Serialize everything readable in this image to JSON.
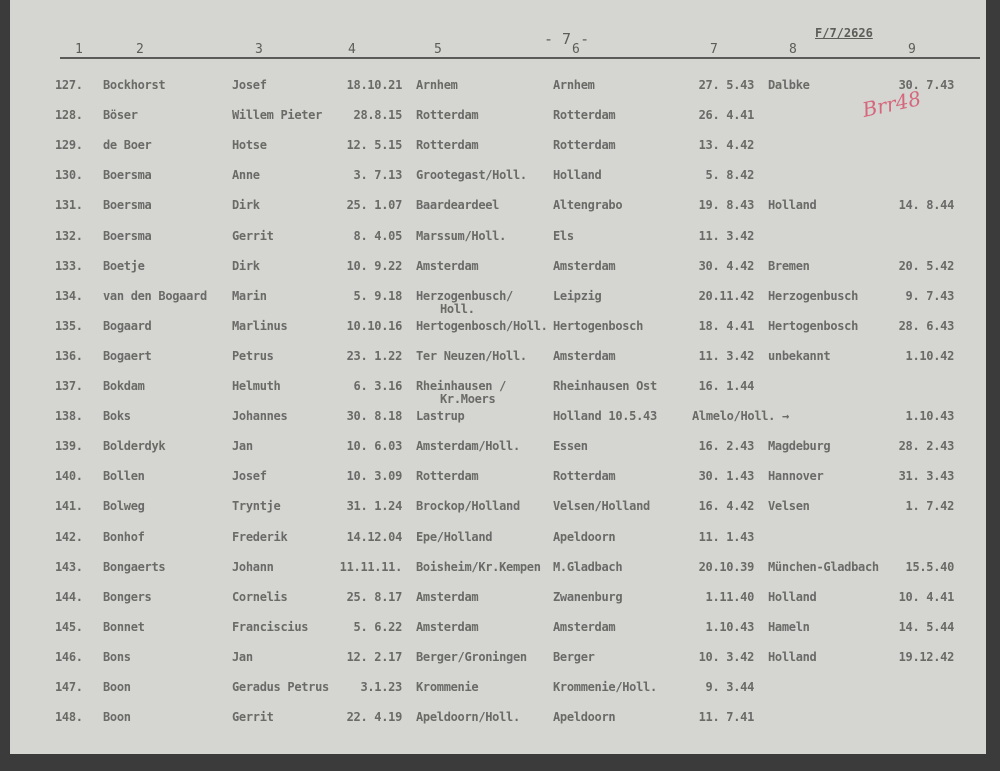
{
  "page_number": "- 7 -",
  "reference": "F/7/2626",
  "annotation": "Brr48",
  "column_headers": [
    "1",
    "2",
    "3",
    "4",
    "5",
    "6",
    "7",
    "8",
    "9"
  ],
  "rows": [
    {
      "no": "127.",
      "surname": "Bockhorst",
      "first": "Josef",
      "born": "18.10.21",
      "birthplace": "Arnhem",
      "from": "Arnhem",
      "date_in": "27. 5.43",
      "to": "Dalbke",
      "date_out": "30. 7.43"
    },
    {
      "no": "128.",
      "surname": "Böser",
      "first": "Willem Pieter",
      "born": "28.8.15",
      "birthplace": "Rotterdam",
      "from": "Rotterdam",
      "date_in": "26. 4.41",
      "to": "",
      "date_out": ""
    },
    {
      "no": "129.",
      "surname": "de Boer",
      "first": "Hotse",
      "born": "12. 5.15",
      "birthplace": "Rotterdam",
      "from": "Rotterdam",
      "date_in": "13. 4.42",
      "to": "",
      "date_out": ""
    },
    {
      "no": "130.",
      "surname": "Boersma",
      "first": "Anne",
      "born": "3. 7.13",
      "birthplace": "Grootegast/Holl.",
      "from": "Holland",
      "date_in": "5. 8.42",
      "to": "",
      "date_out": ""
    },
    {
      "no": "131.",
      "surname": "Boersma",
      "first": "Dirk",
      "born": "25. 1.07",
      "birthplace": "Baardeardeel",
      "from": "Altengrabo",
      "date_in": "19. 8.43",
      "to": "Holland",
      "date_out": "14. 8.44"
    },
    {
      "no": "132.",
      "surname": "Boersma",
      "first": "Gerrit",
      "born": "8. 4.05",
      "birthplace": "Marssum/Holl.",
      "from": "Els",
      "date_in": "11. 3.42",
      "to": "",
      "date_out": ""
    },
    {
      "no": "133.",
      "surname": "Boetje",
      "first": "Dirk",
      "born": "10. 9.22",
      "birthplace": "Amsterdam",
      "from": "Amsterdam",
      "date_in": "30. 4.42",
      "to": "Bremen",
      "date_out": "20. 5.42"
    },
    {
      "no": "134.",
      "surname": "van den Bogaard",
      "first": "Marin",
      "born": "5. 9.18",
      "birthplace": "Herzogenbusch/",
      "birthplace2": "Holl.",
      "from": "Leipzig",
      "date_in": "20.11.42",
      "to": "Herzogenbusch",
      "date_out": "9. 7.43"
    },
    {
      "no": "135.",
      "surname": "Bogaard",
      "first": "Marlinus",
      "born": "10.10.16",
      "birthplace": "Hertogenbosch/Holl.",
      "from": "Hertogenbosch",
      "date_in": "18. 4.41",
      "to": "Hertogenbosch",
      "date_out": "28. 6.43"
    },
    {
      "no": "136.",
      "surname": "Bogaert",
      "first": "Petrus",
      "born": "23. 1.22",
      "birthplace": "Ter Neuzen/Holl.",
      "from": "Amsterdam",
      "date_in": "11. 3.42",
      "to": "unbekannt",
      "date_out": "1.10.42"
    },
    {
      "no": "137.",
      "surname": "Bokdam",
      "first": "Helmuth",
      "born": "6. 3.16",
      "birthplace": "Rheinhausen /",
      "birthplace2": "Kr.Moers",
      "from": "Rheinhausen Ost",
      "date_in": "16. 1.44",
      "to": "",
      "date_out": ""
    },
    {
      "no": "138.",
      "surname": "Boks",
      "first": "Johannes",
      "born": "30. 8.18",
      "birthplace": "Lastrup",
      "from": "Holland 10.5.43",
      "date_in": "Almelo/Holl. →",
      "to": "",
      "date_out": "1.10.43"
    },
    {
      "no": "139.",
      "surname": "Bolderdyk",
      "first": "Jan",
      "born": "10. 6.03",
      "birthplace": "Amsterdam/Holl.",
      "from": "Essen",
      "date_in": "16. 2.43",
      "to": "Magdeburg",
      "date_out": "28. 2.43"
    },
    {
      "no": "140.",
      "surname": "Bollen",
      "first": "Josef",
      "born": "10. 3.09",
      "birthplace": "Rotterdam",
      "from": "Rotterdam",
      "date_in": "30. 1.43",
      "to": "Hannover",
      "date_out": "31. 3.43"
    },
    {
      "no": "141.",
      "surname": "Bolweg",
      "first": "Tryntje",
      "born": "31. 1.24",
      "birthplace": "Brockop/Holland",
      "from": "Velsen/Holland",
      "date_in": "16. 4.42",
      "to": "Velsen",
      "date_out": "1. 7.42"
    },
    {
      "no": "142.",
      "surname": "Bonhof",
      "first": "Frederik",
      "born": "14.12.04",
      "birthplace": "Epe/Holland",
      "from": "Apeldoorn",
      "date_in": "11. 1.43",
      "to": "",
      "date_out": ""
    },
    {
      "no": "143.",
      "surname": "Bongaerts",
      "first": "Johann",
      "born": "11.11.11.",
      "birthplace": "Boisheim/Kr.Kempen",
      "from": "M.Gladbach",
      "date_in": "20.10.39",
      "to": "München-Gladbach",
      "date_out": "15.5.40"
    },
    {
      "no": "144.",
      "surname": "Bongers",
      "first": "Cornelis",
      "born": "25. 8.17",
      "birthplace": "Amsterdam",
      "from": "Zwanenburg",
      "date_in": "1.11.40",
      "to": "Holland",
      "date_out": "10. 4.41"
    },
    {
      "no": "145.",
      "surname": "Bonnet",
      "first": "Franciscius",
      "born": "5. 6.22",
      "birthplace": "Amsterdam",
      "from": "Amsterdam",
      "date_in": "1.10.43",
      "to": "Hameln",
      "date_out": "14. 5.44"
    },
    {
      "no": "146.",
      "surname": "Bons",
      "first": "Jan",
      "born": "12. 2.17",
      "birthplace": "Berger/Groningen",
      "from": "Berger",
      "date_in": "10. 3.42",
      "to": "Holland",
      "date_out": "19.12.42"
    },
    {
      "no": "147.",
      "surname": "Boon",
      "first": "Geradus Petrus",
      "born": "3.1.23",
      "birthplace": "Krommenie",
      "from": "Krommenie/Holl.",
      "date_in": "9. 3.44",
      "to": "",
      "date_out": ""
    },
    {
      "no": "148.",
      "surname": "Boon",
      "first": "Gerrit",
      "born": "22. 4.19",
      "birthplace": "Apeldoorn/Holl.",
      "from": "Apeldoorn",
      "date_in": "11. 7.41",
      "to": "",
      "date_out": ""
    }
  ]
}
